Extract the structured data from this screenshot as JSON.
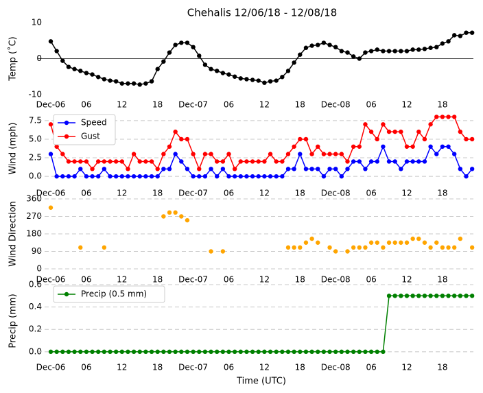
{
  "chart_data": [
    {
      "type": "line",
      "title": "Chehalis 12/06/18 - 12/08/18",
      "y_label": "Temp (˚C)",
      "categories": [
        "Dec-06",
        null,
        null,
        null,
        null,
        null,
        "06",
        null,
        null,
        null,
        null,
        null,
        "12",
        null,
        null,
        null,
        null,
        null,
        "18",
        null,
        null,
        null,
        null,
        null,
        "Dec-07",
        null,
        null,
        null,
        null,
        null,
        "06",
        null,
        null,
        null,
        null,
        null,
        "12",
        null,
        null,
        null,
        null,
        null,
        "18",
        null,
        null,
        null,
        null,
        null,
        "Dec-08",
        null,
        null,
        null,
        null,
        null,
        "06",
        null,
        null,
        null,
        null,
        null,
        "12",
        null,
        null,
        null,
        null,
        null,
        "18",
        null,
        null,
        null,
        null,
        null
      ],
      "series": [
        {
          "color": "#000000",
          "values": [
            4.8,
            2.1,
            -0.6,
            -2.3,
            -2.9,
            -3.4,
            -4.0,
            -4.4,
            -5.1,
            -5.7,
            -6.1,
            -6.3,
            -6.9,
            -6.9,
            -6.9,
            -7.2,
            -6.9,
            -6.3,
            -2.9,
            -0.8,
            1.7,
            3.8,
            4.4,
            4.4,
            3.2,
            0.8,
            -1.7,
            -2.9,
            -3.4,
            -4.0,
            -4.4,
            -5.0,
            -5.5,
            -5.7,
            -5.9,
            -6.1,
            -6.7,
            -6.3,
            -6.1,
            -5.1,
            -3.4,
            -1.1,
            1.1,
            3.0,
            3.6,
            3.8,
            4.4,
            3.8,
            3.2,
            2.1,
            1.7,
            0.6,
            0,
            1.7,
            2.1,
            2.5,
            2.1,
            2.1,
            2.1,
            2.1,
            2.1,
            2.5,
            2.5,
            2.7,
            3.0,
            3.2,
            4.2,
            4.8,
            6.5,
            6.3,
            7.2,
            7.2
          ]
        }
      ],
      "ylim": [
        -10,
        10
      ],
      "yticks": [
        -10,
        0,
        10
      ],
      "grid": false,
      "zero_line": true
    },
    {
      "type": "line",
      "y_label": "Wind (mph)",
      "legend": "upper left",
      "categories": [
        "Dec-06",
        null,
        null,
        null,
        null,
        null,
        "06",
        null,
        null,
        null,
        null,
        null,
        "12",
        null,
        null,
        null,
        null,
        null,
        "18",
        null,
        null,
        null,
        null,
        null,
        "Dec-07",
        null,
        null,
        null,
        null,
        null,
        "06",
        null,
        null,
        null,
        null,
        null,
        "12",
        null,
        null,
        null,
        null,
        null,
        "18",
        null,
        null,
        null,
        null,
        null,
        "Dec-08",
        null,
        null,
        null,
        null,
        null,
        "06",
        null,
        null,
        null,
        null,
        null,
        "12",
        null,
        null,
        null,
        null,
        null,
        "18",
        null,
        null,
        null,
        null,
        null
      ],
      "series": [
        {
          "name": "Speed",
          "color": "#0000ff",
          "values": [
            3,
            0,
            0,
            0,
            0,
            1,
            0,
            0,
            0,
            1,
            0,
            0,
            0,
            0,
            0,
            0,
            0,
            0,
            0,
            1,
            1,
            3,
            2,
            1,
            0,
            0,
            0,
            1,
            0,
            1,
            0,
            0,
            0,
            0,
            0,
            0,
            0,
            0,
            0,
            0,
            1,
            1,
            3,
            1,
            1,
            1,
            0,
            1,
            1,
            0,
            1,
            2,
            2,
            1,
            2,
            2,
            4,
            2,
            2,
            1,
            2,
            2,
            2,
            2,
            4,
            3,
            4,
            4,
            3,
            1,
            0,
            1
          ]
        },
        {
          "name": "Gust",
          "color": "#ff0000",
          "values": [
            7,
            4,
            3,
            2,
            2,
            2,
            2,
            1,
            2,
            2,
            2,
            2,
            2,
            1,
            3,
            2,
            2,
            2,
            1,
            3,
            4,
            6,
            5,
            5,
            3,
            1,
            3,
            3,
            2,
            2,
            3,
            1,
            2,
            2,
            2,
            2,
            2,
            3,
            2,
            2,
            3,
            4,
            5,
            5,
            3,
            4,
            3,
            3,
            3,
            3,
            2,
            4,
            4,
            7,
            6,
            5,
            7,
            6,
            6,
            6,
            4,
            4,
            6,
            5,
            7,
            8,
            8,
            8,
            8,
            6,
            5,
            5
          ]
        }
      ],
      "ylim": [
        -1,
        8.5
      ],
      "yticks": [
        {
          "value": 0,
          "label": "0.0"
        },
        {
          "value": 2.5,
          "label": "2.5"
        },
        {
          "value": 5,
          "label": "5.0"
        },
        {
          "value": 7.5,
          "label": "7.5"
        }
      ],
      "grid": true
    },
    {
      "type": "scatter",
      "y_label": "Wind Direction",
      "categories": [
        "Dec-06",
        null,
        null,
        null,
        null,
        null,
        "06",
        null,
        null,
        null,
        null,
        null,
        "12",
        null,
        null,
        null,
        null,
        null,
        "18",
        null,
        null,
        null,
        null,
        null,
        "Dec-07",
        null,
        null,
        null,
        null,
        null,
        "06",
        null,
        null,
        null,
        null,
        null,
        "12",
        null,
        null,
        null,
        null,
        null,
        "18",
        null,
        null,
        null,
        null,
        null,
        "Dec-08",
        null,
        null,
        null,
        null,
        null,
        "06",
        null,
        null,
        null,
        null,
        null,
        "12",
        null,
        null,
        null,
        null,
        null,
        "18",
        null,
        null,
        null,
        null,
        null
      ],
      "series": [
        {
          "color": "#ffa500",
          "values": [
            315,
            null,
            null,
            null,
            null,
            110,
            null,
            null,
            null,
            110,
            null,
            null,
            null,
            null,
            null,
            null,
            null,
            null,
            null,
            270,
            290,
            290,
            270,
            250,
            null,
            null,
            null,
            90,
            null,
            90,
            null,
            null,
            null,
            null,
            null,
            null,
            null,
            null,
            null,
            null,
            110,
            110,
            110,
            135,
            155,
            135,
            null,
            110,
            90,
            null,
            90,
            110,
            110,
            110,
            135,
            135,
            110,
            135,
            135,
            135,
            135,
            155,
            155,
            135,
            110,
            135,
            110,
            110,
            110,
            155,
            null,
            110
          ]
        }
      ],
      "ylim": [
        0,
        360
      ],
      "yticks": [
        0,
        90,
        180,
        270,
        360
      ],
      "grid": true
    },
    {
      "type": "line",
      "y_label": "Precip (mm)",
      "x_label": "Time (UTC)",
      "legend": "upper left",
      "categories": [
        "Dec-06",
        null,
        null,
        null,
        null,
        null,
        "06",
        null,
        null,
        null,
        null,
        null,
        "12",
        null,
        null,
        null,
        null,
        null,
        "18",
        null,
        null,
        null,
        null,
        null,
        "Dec-07",
        null,
        null,
        null,
        null,
        null,
        "06",
        null,
        null,
        null,
        null,
        null,
        "12",
        null,
        null,
        null,
        null,
        null,
        "18",
        null,
        null,
        null,
        null,
        null,
        "Dec-08",
        null,
        null,
        null,
        null,
        null,
        "06",
        null,
        null,
        null,
        null,
        null,
        "12",
        null,
        null,
        null,
        null,
        null,
        "18",
        null,
        null,
        null,
        null,
        null
      ],
      "series": [
        {
          "name": "Precip (0.5 mm)",
          "color": "#008000",
          "values": [
            0,
            0,
            0,
            0,
            0,
            0,
            0,
            0,
            0,
            0,
            0,
            0,
            0,
            0,
            0,
            0,
            0,
            0,
            0,
            0,
            0,
            0,
            0,
            0,
            0,
            0,
            0,
            0,
            0,
            0,
            0,
            0,
            0,
            0,
            0,
            0,
            0,
            0,
            0,
            0,
            0,
            0,
            0,
            0,
            0,
            0,
            0,
            0,
            0,
            0,
            0,
            0,
            0,
            0,
            0,
            0,
            0,
            0.5,
            0.5,
            0.5,
            0.5,
            0.5,
            0.5,
            0.5,
            0.5,
            0.5,
            0.5,
            0.5,
            0.5,
            0.5,
            0.5,
            0.5
          ]
        }
      ],
      "ylim": [
        -0.05,
        0.6
      ],
      "yticks": [
        {
          "value": 0,
          "label": "0.0"
        },
        {
          "value": 0.2,
          "label": "0.2"
        },
        {
          "value": 0.4,
          "label": "0.4"
        },
        {
          "value": 0.6,
          "label": "0.6"
        }
      ],
      "grid": true
    }
  ]
}
